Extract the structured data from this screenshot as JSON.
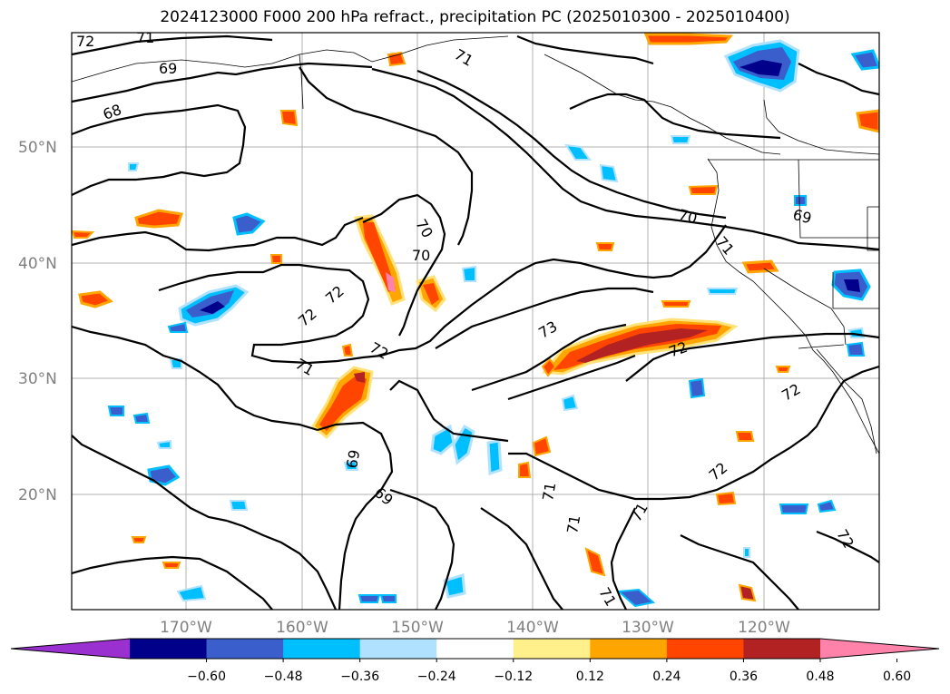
{
  "title": "2024123000 F000 200 hPa refract., precipitation PC (2025010300 - 2025010400)",
  "map": {
    "lat_labels": [
      "50°N",
      "40°N",
      "30°N",
      "20°N"
    ],
    "lon_labels": [
      "170°W",
      "160°W",
      "150°W",
      "140°W",
      "130°W",
      "120°W"
    ],
    "lat_values": [
      50,
      40,
      30,
      20
    ],
    "lon_values": [
      -170,
      -160,
      -150,
      -140,
      -130,
      -120
    ],
    "contour_labels": [
      "72",
      "71",
      "69",
      "68",
      "71",
      "70",
      "70",
      "72",
      "72",
      "71",
      "72",
      "73",
      "72",
      "70",
      "71",
      "69",
      "72",
      "69",
      "69",
      "71",
      "71",
      "71",
      "72",
      "71",
      "72"
    ]
  },
  "colorbar": {
    "ticks": [
      "−0.60",
      "−0.48",
      "−0.36",
      "−0.24",
      "−0.12",
      "0.12",
      "0.24",
      "0.36",
      "0.48",
      "0.60"
    ],
    "colors": [
      "#9b30d0",
      "#00008b",
      "#3a5fcd",
      "#00bfff",
      "#b0e2ff",
      "#ffffff",
      "#fff08c",
      "#ffa500",
      "#ff4500",
      "#b22222",
      "#ff82ab"
    ]
  }
}
